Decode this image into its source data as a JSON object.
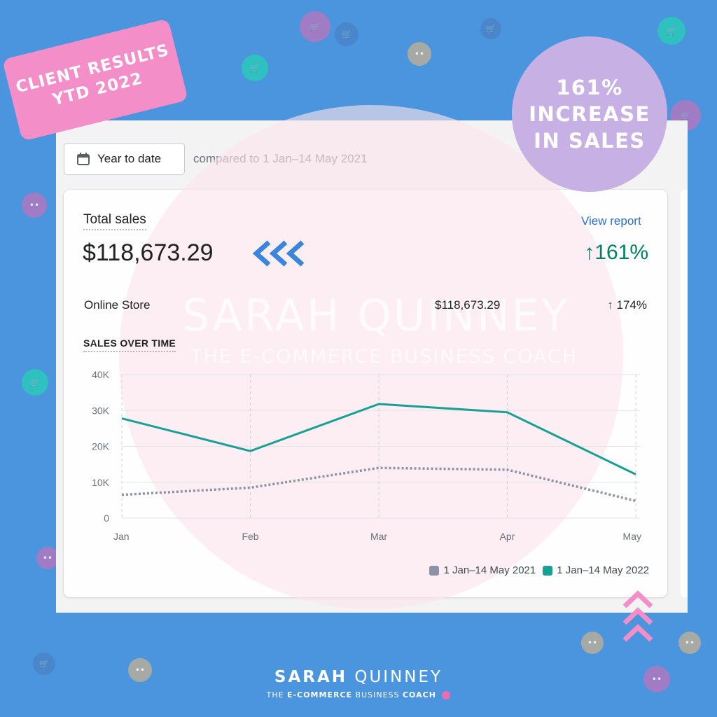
{
  "banner": {
    "line1": "CLIENT RESULTS",
    "line2": "YTD 2022"
  },
  "bubble": {
    "line1": "161%",
    "line2": "INCREASE",
    "line3": "IN SALES"
  },
  "date_picker": {
    "label": "Year to date",
    "icon": "calendar-icon"
  },
  "compare_text": "compared to 1 Jan–14 May 2021",
  "card": {
    "total_label": "Total sales",
    "total_value": "$118,673.29",
    "view_report": "View report",
    "growth_arrow": "↑",
    "growth_value": "161%",
    "channel_label": "Online Store",
    "channel_value": "$118,673.29",
    "channel_growth_arrow": "↑",
    "channel_growth": "174%",
    "section_title": "SALES OVER TIME"
  },
  "watermark": {
    "name": "SARAH QUINNEY",
    "tagline": "THE E-COMMERCE BUSINESS COACH"
  },
  "footer": {
    "name_bold": "SARAH",
    "name_light": "QUINNEY",
    "sub_pre": "THE",
    "sub_bold": "E-COMMERCE",
    "sub_post": "BUSINESS",
    "sub_bold2": "COACH"
  },
  "colors": {
    "background": "#4a95dd",
    "series_2022": "#18a094",
    "series_2021": "#8c93a6",
    "growth": "#008060",
    "banner": "#f48ec8",
    "bubble": "#c7b0e3"
  },
  "chart_data": {
    "type": "line",
    "x": [
      "Jan",
      "Feb",
      "Mar",
      "Apr",
      "May"
    ],
    "y_ticks": [
      "40K",
      "30K",
      "20K",
      "10K",
      "0"
    ],
    "ylim": [
      0,
      40000
    ],
    "grid": true,
    "legend_position": "bottom-right",
    "series": [
      {
        "name": "1 Jan–14 May 2021",
        "values": [
          6500,
          8500,
          14000,
          13500,
          4800
        ],
        "style": "dotted",
        "color": "#8c93a6"
      },
      {
        "name": "1 Jan–14 May 2022",
        "values": [
          27800,
          18700,
          31800,
          29500,
          12200
        ],
        "style": "solid",
        "color": "#18a094"
      }
    ]
  }
}
